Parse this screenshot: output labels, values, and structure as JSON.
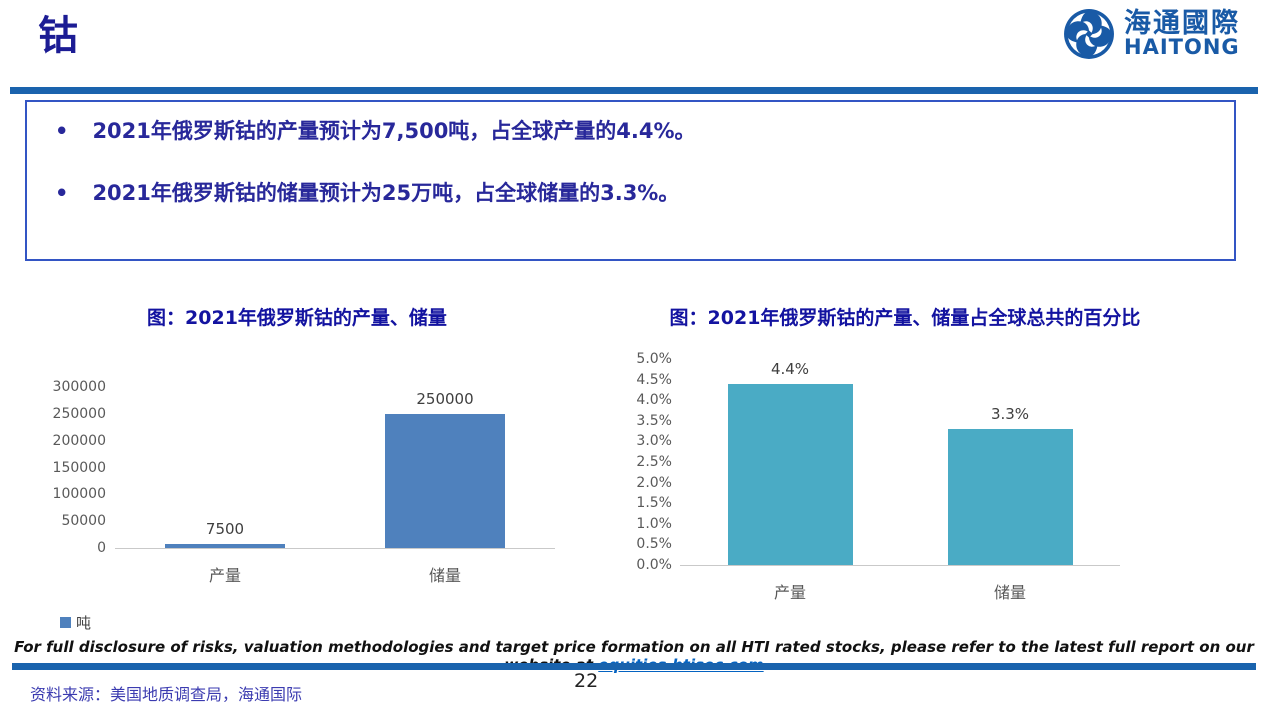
{
  "slide": {
    "title": "钴",
    "page_number": "22",
    "source_note": "资料来源：美国地质调查局，海通国际",
    "disclaimer_prefix": "For full disclosure of risks, valuation methodologies and target price formation on all HTI rated stocks, please refer to the latest full report on our website at ",
    "disclaimer_link": "equities.htisec.com"
  },
  "logo": {
    "cn": "海通國際",
    "en": "HAITONG",
    "color": "#195aa6"
  },
  "bullets": [
    "2021年俄罗斯钴的产量预计为7,500吨，占全球产量的4.4%。",
    "2021年俄罗斯钴的储量预计为25万吨，占全球储量的3.3%。"
  ],
  "theme": {
    "rule_blue": "#1a63ad",
    "title_navy": "#1c1c94",
    "bullet_text_blue": "#28289a",
    "box_border_blue": "#3355c4",
    "link_blue": "#0563c1",
    "axis_gray": "#595959"
  },
  "chart_data": [
    {
      "type": "bar",
      "title": "图：2021年俄罗斯钴的产量、储量",
      "categories": [
        "产量",
        "储量"
      ],
      "values": [
        7500,
        250000
      ],
      "data_labels": [
        "7500",
        "250000"
      ],
      "ylim": [
        0,
        300000
      ],
      "ytick_step": 50000,
      "yticks": [
        "300000",
        "250000",
        "200000",
        "150000",
        "100000",
        "50000",
        "0"
      ],
      "bar_color": "#4f81bd",
      "grid": false,
      "legend": [
        {
          "label": "吨",
          "color": "#4f81bd"
        }
      ],
      "legend_position": "bottom-left",
      "xlabel": "",
      "ylabel": ""
    },
    {
      "type": "bar",
      "title": "图：2021年俄罗斯钴的产量、储量占全球总共的百分比",
      "categories": [
        "产量",
        "储量"
      ],
      "values": [
        4.4,
        3.3
      ],
      "data_labels": [
        "4.4%",
        "3.3%"
      ],
      "ylim": [
        0,
        5.0
      ],
      "ytick_step": 0.5,
      "yticks": [
        "5.0%",
        "4.5%",
        "4.0%",
        "3.5%",
        "3.0%",
        "2.5%",
        "2.0%",
        "1.5%",
        "1.0%",
        "0.5%",
        "0.0%"
      ],
      "bar_color": "#4aabc5",
      "grid": false,
      "legend": null,
      "xlabel": "",
      "ylabel": ""
    }
  ]
}
